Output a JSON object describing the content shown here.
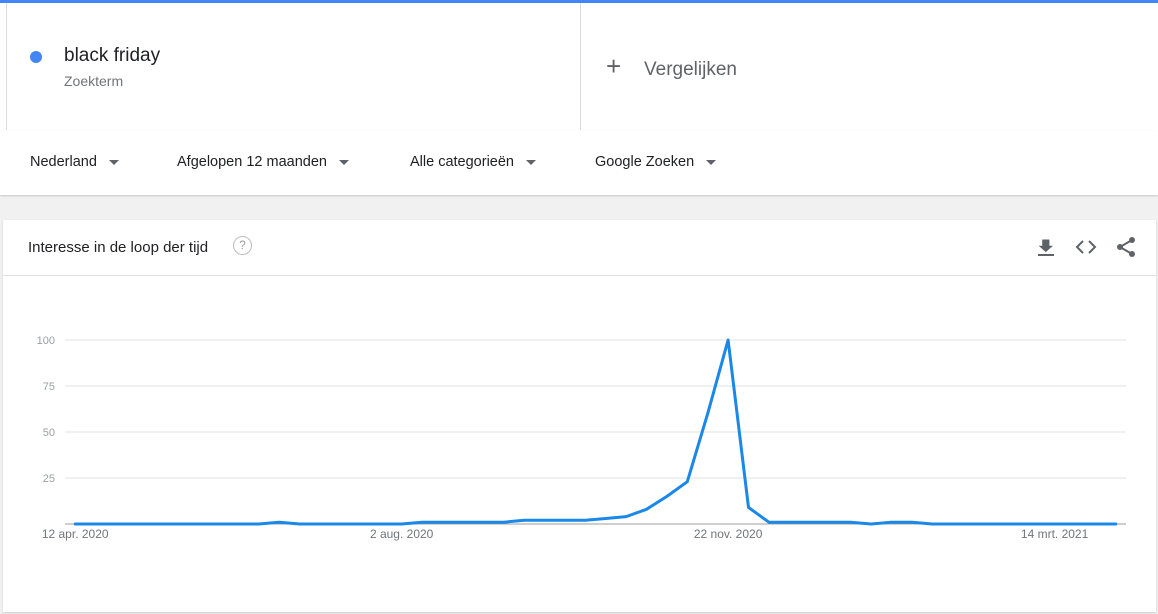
{
  "search_term": {
    "name": "black friday",
    "type": "Zoekterm",
    "color": "#4285f4"
  },
  "compare": {
    "label": "Vergelijken",
    "icon": "plus-icon"
  },
  "filters": [
    {
      "label": "Nederland"
    },
    {
      "label": "Afgelopen 12 maanden"
    },
    {
      "label": "Alle categorieën"
    },
    {
      "label": "Google Zoeken"
    }
  ],
  "card": {
    "title": "Interesse in de loop der tijd",
    "icons": [
      "help-icon",
      "download-icon",
      "embed-icon",
      "share-icon"
    ]
  },
  "chart_data": {
    "type": "line",
    "title": "",
    "xlabel": "",
    "ylabel": "",
    "ylim": [
      0,
      100
    ],
    "yticks": [
      "0",
      "25",
      "50",
      "75",
      "100"
    ],
    "xticks": [
      {
        "label": "12 apr. 2020",
        "index": 0
      },
      {
        "label": "2 aug. 2020",
        "index": 16
      },
      {
        "label": "22 nov. 2020",
        "index": 32
      },
      {
        "label": "14 mrt. 2021",
        "index": 48
      }
    ],
    "grid": true,
    "series": [
      {
        "color": "#1a88e8",
        "values": [
          0,
          0,
          0,
          0,
          0,
          0,
          0,
          0,
          0,
          0,
          1,
          0,
          0,
          0,
          0,
          0,
          0,
          1,
          1,
          1,
          1,
          1,
          2,
          2,
          2,
          2,
          3,
          4,
          8,
          15,
          23,
          60,
          100,
          9,
          1,
          1,
          1,
          1,
          1,
          0,
          1,
          1,
          0,
          0,
          0,
          0,
          0,
          0,
          0,
          0,
          0,
          0
        ]
      }
    ]
  }
}
